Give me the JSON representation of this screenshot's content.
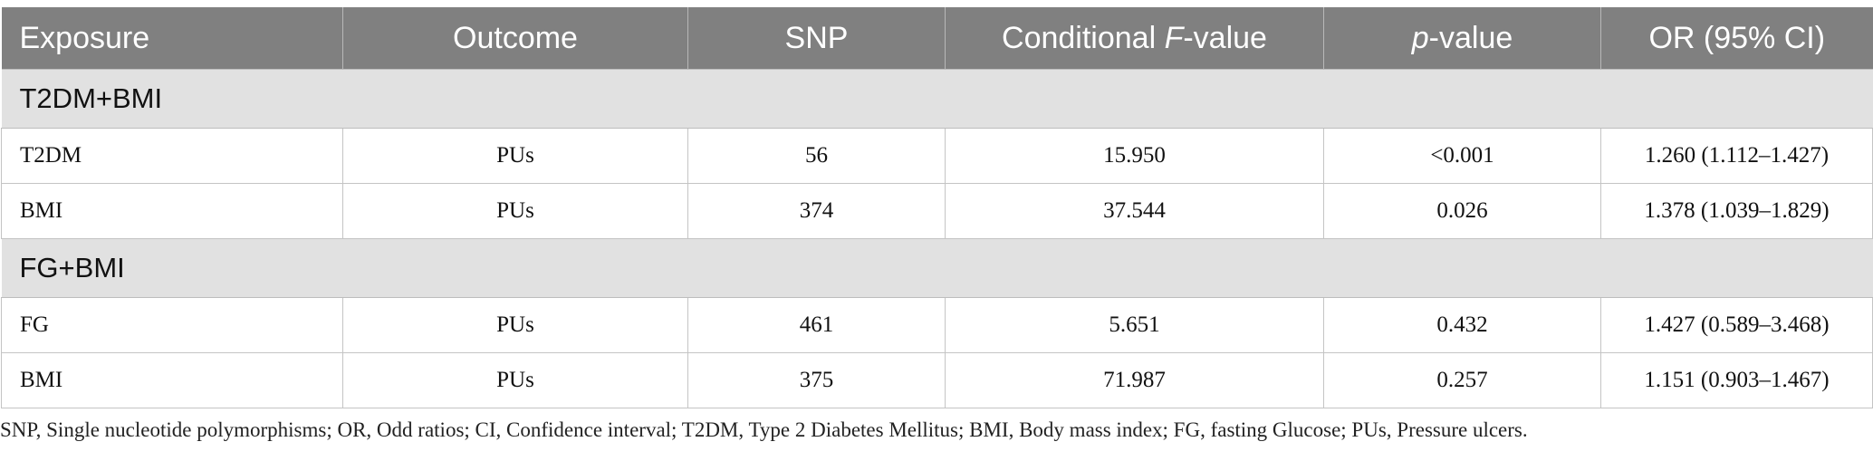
{
  "table": {
    "headers": {
      "exposure": "Exposure",
      "outcome": "Outcome",
      "snp": "SNP",
      "conditional_prefix": "Conditional ",
      "conditional_italic": "F",
      "conditional_suffix": "-value",
      "p_italic": "p",
      "p_suffix": "-value",
      "or": "OR (95% CI)"
    },
    "groups": [
      {
        "label": "T2DM+BMI",
        "rows": [
          {
            "exposure": "T2DM",
            "outcome": "PUs",
            "snp": "56",
            "f_value": "15.950",
            "p_value": "<0.001",
            "or_ci": "1.260 (1.112–1.427)"
          },
          {
            "exposure": "BMI",
            "outcome": "PUs",
            "snp": "374",
            "f_value": "37.544",
            "p_value": "0.026",
            "or_ci": "1.378 (1.039–1.829)"
          }
        ]
      },
      {
        "label": "FG+BMI",
        "rows": [
          {
            "exposure": "FG",
            "outcome": "PUs",
            "snp": "461",
            "f_value": "5.651",
            "p_value": "0.432",
            "or_ci": "1.427 (0.589–3.468)"
          },
          {
            "exposure": "BMI",
            "outcome": "PUs",
            "snp": "375",
            "f_value": "71.987",
            "p_value": "0.257",
            "or_ci": "1.151 (0.903–1.467)"
          }
        ]
      }
    ]
  },
  "footnote": "SNP, Single nucleotide polymorphisms; OR, Odd ratios; CI, Confidence interval; T2DM, Type 2 Diabetes Mellitus; BMI, Body mass index; FG, fasting Glucose; PUs, Pressure ulcers."
}
